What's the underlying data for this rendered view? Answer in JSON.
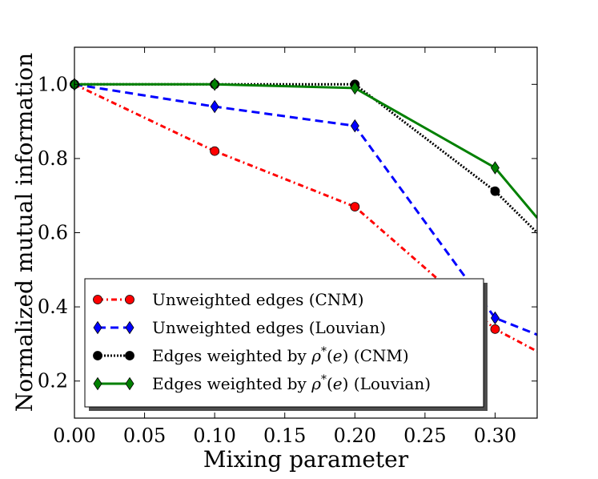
{
  "chart_data": {
    "type": "line",
    "title": "",
    "xlabel": "Mixing parameter",
    "ylabel": "Normalized mutual information",
    "xlim": [
      0.0,
      0.33
    ],
    "ylim": [
      0.1,
      1.1
    ],
    "xticks": [
      0.0,
      0.05,
      0.1,
      0.15,
      0.2,
      0.25,
      0.3
    ],
    "xtick_labels": [
      "0.00",
      "0.05",
      "0.10",
      "0.15",
      "0.20",
      "0.25",
      "0.30"
    ],
    "yticks": [
      0.2,
      0.4,
      0.6,
      0.8,
      1.0
    ],
    "ytick_labels": [
      "0.2",
      "0.4",
      "0.6",
      "0.8",
      "1.0"
    ],
    "legend_position": "lower-left",
    "series": [
      {
        "name": "Unweighted edges (CNM)",
        "legend_parts": [
          "Unweighted edges (CNM)"
        ],
        "color": "#ff0000",
        "dash": "dashdot",
        "marker": "circle",
        "x": [
          0.0,
          0.1,
          0.2,
          0.3,
          0.33
        ],
        "y": [
          1.0,
          0.82,
          0.67,
          0.34,
          0.28
        ],
        "marker_x": [
          0.0,
          0.1,
          0.2,
          0.3
        ],
        "marker_y": [
          1.0,
          0.82,
          0.67,
          0.34
        ]
      },
      {
        "name": "Unweighted edges (Louvian)",
        "legend_parts": [
          "Unweighted edges (Louvian)"
        ],
        "color": "#0000ff",
        "dash": "dashed",
        "marker": "diamond",
        "x": [
          0.0,
          0.1,
          0.2,
          0.3,
          0.33
        ],
        "y": [
          1.0,
          0.94,
          0.888,
          0.37,
          0.325
        ],
        "marker_x": [
          0.0,
          0.1,
          0.2,
          0.3
        ],
        "marker_y": [
          1.0,
          0.94,
          0.888,
          0.37
        ]
      },
      {
        "name": "Edges weighted by ρ*(e) (CNM)",
        "legend_parts": [
          "Edges weighted by ",
          "ρ",
          "*",
          "(",
          "e",
          ")",
          " (CNM)"
        ],
        "color": "#000000",
        "dash": "dotted",
        "marker": "circle",
        "x": [
          0.0,
          0.1,
          0.2,
          0.3,
          0.33
        ],
        "y": [
          1.0,
          1.0,
          1.0,
          0.712,
          0.6
        ],
        "marker_x": [
          0.0,
          0.1,
          0.2,
          0.3
        ],
        "marker_y": [
          1.0,
          1.0,
          1.0,
          0.712
        ]
      },
      {
        "name": "Edges weighted by ρ*(e) (Louvian)",
        "legend_parts": [
          "Edges weighted by ",
          "ρ",
          "*",
          "(",
          "e",
          ")",
          " (Louvian)"
        ],
        "color": "#008000",
        "dash": "solid",
        "marker": "diamond",
        "x": [
          0.0,
          0.1,
          0.2,
          0.3,
          0.33
        ],
        "y": [
          1.0,
          1.0,
          0.99,
          0.775,
          0.64
        ],
        "marker_x": [
          0.0,
          0.1,
          0.2,
          0.3
        ],
        "marker_y": [
          1.0,
          1.0,
          0.99,
          0.775
        ]
      }
    ]
  }
}
